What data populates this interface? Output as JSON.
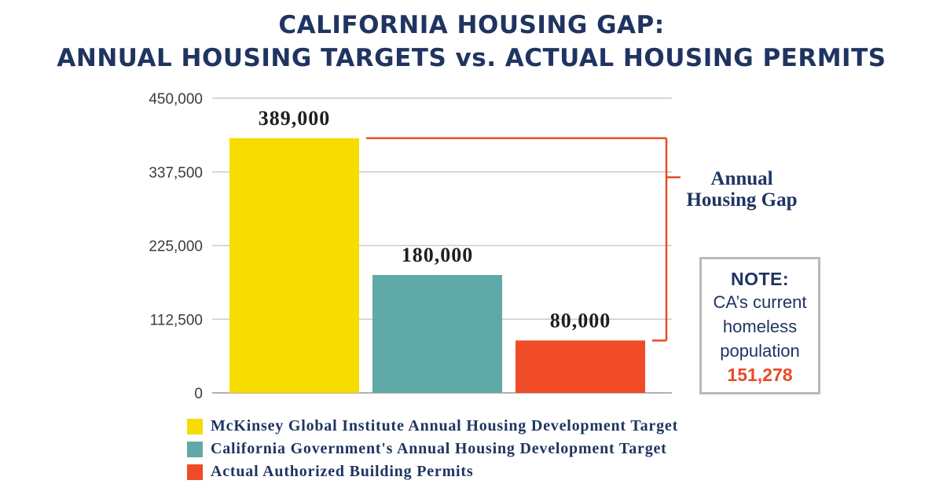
{
  "title": {
    "line1": "CALIFORNIA HOUSING GAP:",
    "line2": "ANNUAL HOUSING TARGETS vs. ACTUAL HOUSING PERMITS"
  },
  "chart_data": {
    "type": "bar",
    "title": "CALIFORNIA HOUSING GAP: ANNUAL HOUSING TARGETS vs. ACTUAL HOUSING PERMITS",
    "categories": [
      "McKinsey Global Institute Annual Housing Development Target",
      "California Government's Annual Housing Development Target",
      "Actual Authorized Building Permits"
    ],
    "values": [
      389000,
      180000,
      80000
    ],
    "value_labels": [
      "389,000",
      "180,000",
      "80,000"
    ],
    "colors": [
      "#f7dc00",
      "#5faaa8",
      "#ee4b26"
    ],
    "ylim": [
      0,
      450000
    ],
    "yticks": [
      0,
      112500,
      225000,
      337500,
      450000
    ],
    "ytick_labels": [
      "0",
      "112,500",
      "225,000",
      "337,500",
      "450,000"
    ],
    "grid": true,
    "xlabel": "",
    "ylabel": "",
    "legend_position": "bottom-left",
    "annotation": {
      "label_line1": "Annual",
      "label_line2": "Housing Gap",
      "from_value": 389000,
      "to_value": 80000,
      "color": "#e84a27"
    }
  },
  "note": {
    "title": "NOTE:",
    "line1": "CA’s current",
    "line2": "homeless",
    "line3": "population",
    "value": "151,278"
  },
  "colors": {
    "navy": "#1f3461",
    "accent": "#e84a27",
    "grid": "#cccccc"
  }
}
